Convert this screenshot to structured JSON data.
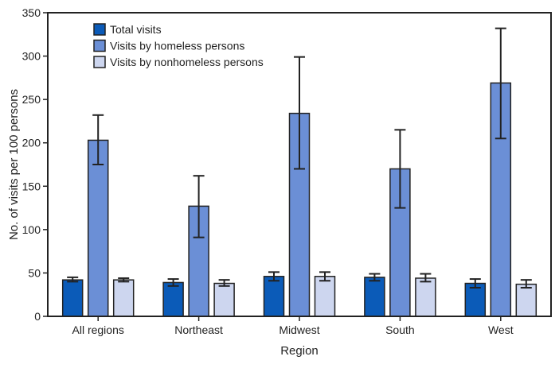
{
  "chart_data": {
    "type": "bar",
    "xlabel": "Region",
    "ylabel": "No. of visits per 100 persons",
    "ylim": [
      0,
      350
    ],
    "yticks": [
      0,
      50,
      100,
      150,
      200,
      250,
      300,
      350
    ],
    "grid": false,
    "legend_position": "top-left",
    "categories": [
      "All regions",
      "Northeast",
      "Midwest",
      "South",
      "West"
    ],
    "series": [
      {
        "name": "Total visits",
        "color": "#0b5bb8",
        "values": [
          42,
          39,
          46,
          45,
          38
        ],
        "ci_low": [
          40,
          35,
          41,
          41,
          33
        ],
        "ci_high": [
          45,
          43,
          51,
          49,
          43
        ]
      },
      {
        "name": "Visits by homeless persons",
        "color": "#6b8fd6",
        "values": [
          203,
          127,
          234,
          170,
          269
        ],
        "ci_low": [
          175,
          91,
          170,
          125,
          205
        ],
        "ci_high": [
          232,
          162,
          299,
          215,
          332
        ]
      },
      {
        "name": "Visits by nonhomeless persons",
        "color": "#cdd6ef",
        "values": [
          42,
          38,
          46,
          44,
          37
        ],
        "ci_low": [
          40,
          35,
          41,
          40,
          33
        ],
        "ci_high": [
          44,
          42,
          51,
          49,
          42
        ]
      }
    ]
  }
}
